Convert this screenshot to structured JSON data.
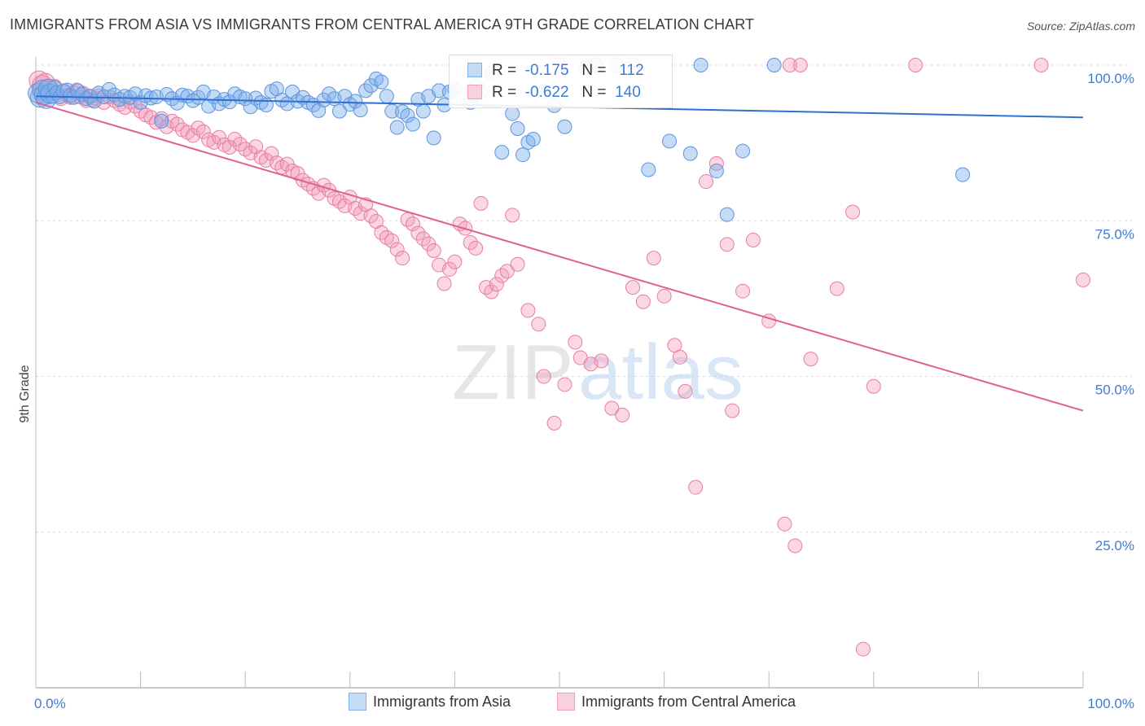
{
  "header": {
    "title": "IMMIGRANTS FROM ASIA VS IMMIGRANTS FROM CENTRAL AMERICA 9TH GRADE CORRELATION CHART",
    "source": "Source: ZipAtlas.com"
  },
  "watermark": {
    "zip": "ZIP",
    "atlas": "atlas"
  },
  "legend": {
    "rows": [
      {
        "r_label": "R =",
        "r_value": "-0.175",
        "n_label": "N =",
        "n_value": "112",
        "color": "#7fb0ea"
      },
      {
        "r_label": "R =",
        "r_value": "-0.622",
        "n_label": "N =",
        "n_value": "140",
        "color": "#f29cb8"
      }
    ]
  },
  "chart_data": {
    "type": "scatter",
    "title": "IMMIGRANTS FROM ASIA VS IMMIGRANTS FROM CENTRAL AMERICA 9TH GRADE CORRELATION CHART",
    "xlabel": "",
    "ylabel": "9th Grade",
    "xlim": [
      0,
      100
    ],
    "ylim": [
      0,
      100
    ],
    "x_tick_labels": [
      "0.0%",
      "100.0%"
    ],
    "y_ticks": [
      {
        "value": 100,
        "label": "100.0%"
      },
      {
        "value": 75,
        "label": "75.0%"
      },
      {
        "value": 50,
        "label": "50.0%"
      },
      {
        "value": 25,
        "label": "25.0%"
      }
    ],
    "grid": true,
    "legend_position": "top-center",
    "series": [
      {
        "name": "Immigrants from Asia",
        "color": "#7fb0ea",
        "stroke": "#5d95dd",
        "trend": {
          "x0": 0,
          "y0": 95.0,
          "x1": 100,
          "y1": 91.6,
          "color": "#2f6fd0"
        },
        "points": [
          [
            0.2,
            95.5
          ],
          [
            0.4,
            94.8
          ],
          [
            0.6,
            96.0
          ],
          [
            0.8,
            95.2
          ],
          [
            1.0,
            94.6
          ],
          [
            1.2,
            96.2
          ],
          [
            1.4,
            95.4
          ],
          [
            1.6,
            95.0
          ],
          [
            1.8,
            96.4
          ],
          [
            2.0,
            95.6
          ],
          [
            2.3,
            94.9
          ],
          [
            2.6,
            95.8
          ],
          [
            3.0,
            96.0
          ],
          [
            3.3,
            95.1
          ],
          [
            3.6,
            94.8
          ],
          [
            4.0,
            95.9
          ],
          [
            4.4,
            95.3
          ],
          [
            4.8,
            94.6
          ],
          [
            5.2,
            95.0
          ],
          [
            5.6,
            94.2
          ],
          [
            6.0,
            95.5
          ],
          [
            6.5,
            94.9
          ],
          [
            7.0,
            96.1
          ],
          [
            7.5,
            95.2
          ],
          [
            8.0,
            94.5
          ],
          [
            8.5,
            95.0
          ],
          [
            9.0,
            94.8
          ],
          [
            9.5,
            95.4
          ],
          [
            10.0,
            94.0
          ],
          [
            10.5,
            95.1
          ],
          [
            11.0,
            94.7
          ],
          [
            11.5,
            94.9
          ],
          [
            12.0,
            91.0
          ],
          [
            12.5,
            95.3
          ],
          [
            13.0,
            94.6
          ],
          [
            13.5,
            93.9
          ],
          [
            14.0,
            95.2
          ],
          [
            14.5,
            95.0
          ],
          [
            15.0,
            94.3
          ],
          [
            15.5,
            94.8
          ],
          [
            16.0,
            95.7
          ],
          [
            16.5,
            93.4
          ],
          [
            17.0,
            94.9
          ],
          [
            17.5,
            93.8
          ],
          [
            18.0,
            94.5
          ],
          [
            18.5,
            94.1
          ],
          [
            19.0,
            95.4
          ],
          [
            19.5,
            94.9
          ],
          [
            20.0,
            94.6
          ],
          [
            20.5,
            93.3
          ],
          [
            21.0,
            94.7
          ],
          [
            21.5,
            94.0
          ],
          [
            22.0,
            93.6
          ],
          [
            22.5,
            95.8
          ],
          [
            23.0,
            96.2
          ],
          [
            23.5,
            94.4
          ],
          [
            24.0,
            93.8
          ],
          [
            24.5,
            95.7
          ],
          [
            25.0,
            94.2
          ],
          [
            25.5,
            94.8
          ],
          [
            26.0,
            94.0
          ],
          [
            26.5,
            93.6
          ],
          [
            27.0,
            92.7
          ],
          [
            27.5,
            94.4
          ],
          [
            28.0,
            95.4
          ],
          [
            28.5,
            94.6
          ],
          [
            29.0,
            92.6
          ],
          [
            29.5,
            95.0
          ],
          [
            30.0,
            93.7
          ],
          [
            30.5,
            94.2
          ],
          [
            31.0,
            92.8
          ],
          [
            31.5,
            95.9
          ],
          [
            32.0,
            96.7
          ],
          [
            32.5,
            97.8
          ],
          [
            33.0,
            97.3
          ],
          [
            33.5,
            95.0
          ],
          [
            34.0,
            92.6
          ],
          [
            34.5,
            90.0
          ],
          [
            35.0,
            92.5
          ],
          [
            35.5,
            91.9
          ],
          [
            36.0,
            90.5
          ],
          [
            36.5,
            94.5
          ],
          [
            37.0,
            92.6
          ],
          [
            37.5,
            95.0
          ],
          [
            38.0,
            88.3
          ],
          [
            38.5,
            95.9
          ],
          [
            39.0,
            93.6
          ],
          [
            39.5,
            95.7
          ],
          [
            40.0,
            96.1
          ],
          [
            41.5,
            94.0
          ],
          [
            42.0,
            96.6
          ],
          [
            42.5,
            95.7
          ],
          [
            43.5,
            98.7
          ],
          [
            44.5,
            86.0
          ],
          [
            45.5,
            92.2
          ],
          [
            46.0,
            89.8
          ],
          [
            46.5,
            85.6
          ],
          [
            47.0,
            87.6
          ],
          [
            47.5,
            88.1
          ],
          [
            48.5,
            95.7
          ],
          [
            49.5,
            93.5
          ],
          [
            50.5,
            90.1
          ],
          [
            52.5,
            99.6
          ],
          [
            53.5,
            100.0
          ],
          [
            55.5,
            100.0
          ],
          [
            58.5,
            83.2
          ],
          [
            60.5,
            87.8
          ],
          [
            62.5,
            85.8
          ],
          [
            63.5,
            100.0
          ],
          [
            65.0,
            83.0
          ],
          [
            66.0,
            76.0
          ],
          [
            67.5,
            86.2
          ],
          [
            70.5,
            100.0
          ],
          [
            88.5,
            82.4
          ]
        ]
      },
      {
        "name": "Immigrants from Central America",
        "color": "#f29cb8",
        "stroke": "#e87ea2",
        "trend": {
          "x0": 0,
          "y0": 94.0,
          "x1": 100,
          "y1": 44.5,
          "color": "#e0608e"
        },
        "points": [
          [
            0.3,
            97.5
          ],
          [
            0.6,
            96.8
          ],
          [
            0.9,
            97.1
          ],
          [
            1.2,
            96.0
          ],
          [
            1.5,
            95.4
          ],
          [
            1.8,
            96.6
          ],
          [
            2.1,
            95.2
          ],
          [
            2.4,
            94.6
          ],
          [
            2.7,
            95.9
          ],
          [
            3.0,
            95.1
          ],
          [
            3.3,
            94.8
          ],
          [
            3.6,
            95.6
          ],
          [
            3.9,
            96.0
          ],
          [
            4.2,
            94.9
          ],
          [
            4.5,
            95.5
          ],
          [
            4.8,
            94.3
          ],
          [
            5.1,
            95.0
          ],
          [
            5.4,
            94.4
          ],
          [
            5.7,
            94.7
          ],
          [
            6.0,
            95.1
          ],
          [
            6.5,
            94.0
          ],
          [
            7.0,
            94.9
          ],
          [
            7.5,
            94.3
          ],
          [
            8.0,
            93.7
          ],
          [
            8.5,
            93.2
          ],
          [
            9.0,
            94.1
          ],
          [
            9.5,
            93.4
          ],
          [
            10.0,
            92.6
          ],
          [
            10.5,
            92.0
          ],
          [
            11.0,
            91.6
          ],
          [
            11.5,
            90.8
          ],
          [
            12.0,
            91.4
          ],
          [
            12.5,
            90.1
          ],
          [
            13.0,
            91.0
          ],
          [
            13.5,
            90.5
          ],
          [
            14.0,
            89.6
          ],
          [
            14.5,
            89.2
          ],
          [
            15.0,
            88.7
          ],
          [
            15.5,
            89.9
          ],
          [
            16.0,
            89.3
          ],
          [
            16.5,
            88.0
          ],
          [
            17.0,
            87.6
          ],
          [
            17.5,
            88.4
          ],
          [
            18.0,
            87.2
          ],
          [
            18.5,
            86.8
          ],
          [
            19.0,
            88.1
          ],
          [
            19.5,
            87.3
          ],
          [
            20.0,
            86.5
          ],
          [
            20.5,
            85.9
          ],
          [
            21.0,
            86.9
          ],
          [
            21.5,
            85.2
          ],
          [
            22.0,
            84.7
          ],
          [
            22.5,
            85.8
          ],
          [
            23.0,
            84.3
          ],
          [
            23.5,
            83.6
          ],
          [
            24.0,
            84.1
          ],
          [
            24.5,
            83.0
          ],
          [
            25.0,
            82.6
          ],
          [
            25.5,
            81.5
          ],
          [
            26.0,
            80.9
          ],
          [
            26.5,
            80.2
          ],
          [
            27.0,
            79.4
          ],
          [
            27.5,
            80.7
          ],
          [
            28.0,
            79.9
          ],
          [
            28.5,
            78.6
          ],
          [
            29.0,
            78.1
          ],
          [
            29.5,
            77.4
          ],
          [
            30.0,
            78.8
          ],
          [
            30.5,
            77.0
          ],
          [
            31.0,
            76.2
          ],
          [
            31.5,
            77.6
          ],
          [
            32.0,
            75.8
          ],
          [
            32.5,
            74.9
          ],
          [
            33.0,
            73.1
          ],
          [
            33.5,
            72.3
          ],
          [
            34.0,
            71.8
          ],
          [
            34.5,
            70.4
          ],
          [
            35.0,
            69.0
          ],
          [
            35.5,
            75.2
          ],
          [
            36.0,
            74.5
          ],
          [
            36.5,
            73.0
          ],
          [
            37.0,
            72.1
          ],
          [
            37.5,
            71.3
          ],
          [
            38.0,
            70.2
          ],
          [
            38.5,
            67.9
          ],
          [
            39.0,
            64.9
          ],
          [
            39.5,
            67.2
          ],
          [
            40.0,
            68.4
          ],
          [
            40.5,
            74.5
          ],
          [
            41.0,
            73.8
          ],
          [
            41.5,
            71.5
          ],
          [
            42.0,
            70.6
          ],
          [
            42.5,
            77.8
          ],
          [
            43.0,
            64.3
          ],
          [
            43.5,
            63.6
          ],
          [
            44.0,
            64.8
          ],
          [
            44.5,
            66.2
          ],
          [
            45.0,
            66.9
          ],
          [
            45.5,
            75.9
          ],
          [
            46.0,
            68.0
          ],
          [
            47.0,
            60.6
          ],
          [
            48.0,
            58.4
          ],
          [
            48.5,
            50.0
          ],
          [
            49.5,
            42.5
          ],
          [
            50.5,
            48.7
          ],
          [
            51.5,
            55.5
          ],
          [
            52.0,
            53.0
          ],
          [
            53.0,
            52.0
          ],
          [
            54.0,
            52.5
          ],
          [
            55.0,
            44.9
          ],
          [
            56.0,
            43.8
          ],
          [
            57.0,
            64.3
          ],
          [
            58.0,
            62.0
          ],
          [
            59.0,
            69.0
          ],
          [
            60.0,
            62.9
          ],
          [
            61.0,
            55.0
          ],
          [
            61.5,
            53.1
          ],
          [
            62.0,
            47.6
          ],
          [
            63.0,
            32.2
          ],
          [
            64.0,
            81.3
          ],
          [
            65.0,
            84.2
          ],
          [
            66.0,
            71.2
          ],
          [
            66.5,
            44.5
          ],
          [
            67.5,
            63.7
          ],
          [
            68.5,
            71.9
          ],
          [
            70.0,
            58.9
          ],
          [
            71.5,
            26.3
          ],
          [
            72.5,
            22.8
          ],
          [
            74.0,
            52.8
          ],
          [
            76.5,
            64.1
          ],
          [
            78.0,
            76.4
          ],
          [
            79.0,
            6.2
          ],
          [
            80.0,
            48.4
          ],
          [
            50.0,
            100.0
          ],
          [
            57.0,
            100.0
          ],
          [
            72.0,
            100.0
          ],
          [
            73.0,
            100.0
          ],
          [
            84.0,
            100.0
          ],
          [
            96.0,
            100.0
          ],
          [
            100.0,
            65.5
          ]
        ]
      }
    ]
  },
  "bottom_legend": {
    "items": [
      {
        "label": "Immigrants from Asia",
        "color": "#7fb0ea"
      },
      {
        "label": "Immigrants from Central America",
        "color": "#f29cb8"
      }
    ]
  }
}
